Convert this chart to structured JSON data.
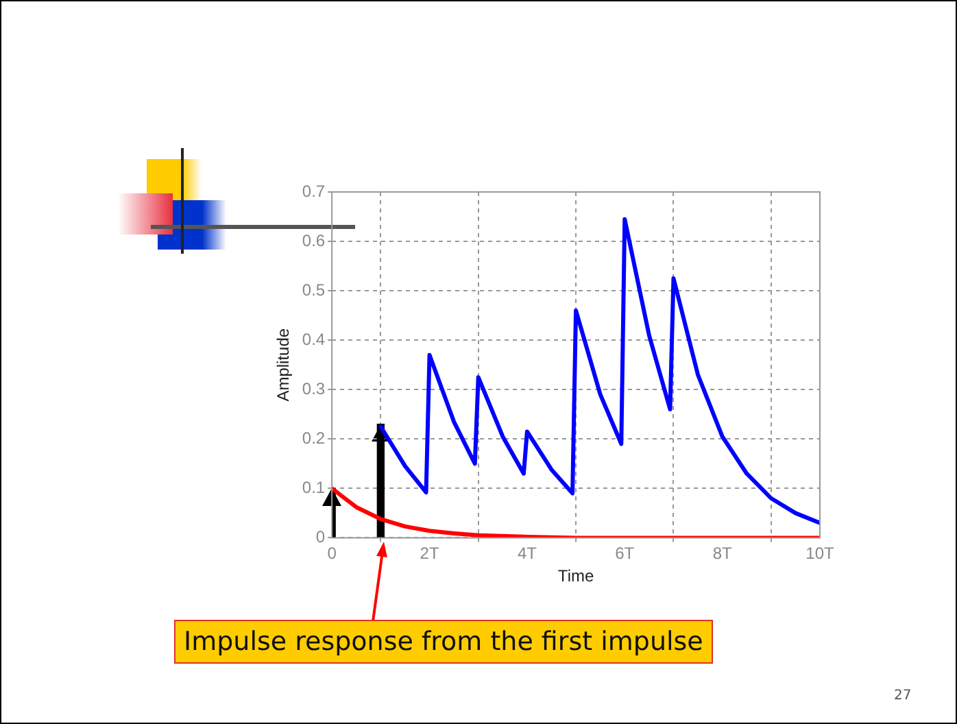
{
  "chart_data": {
    "type": "line",
    "xlabel": "Time",
    "ylabel": "Amplitude",
    "xlim": [
      0,
      10
    ],
    "xticks": [
      0,
      {
        "value": 2,
        "label": "2T"
      },
      {
        "value": 4,
        "label": "4T"
      },
      {
        "value": 6,
        "label": "6T"
      },
      {
        "value": 8,
        "label": "8T"
      },
      {
        "value": 10,
        "label": "10T"
      }
    ],
    "ylim": [
      0,
      0.7
    ],
    "yticks": [
      0,
      0.1,
      0.2,
      0.3,
      0.4,
      0.5,
      0.6,
      0.7
    ],
    "grid": true,
    "line_style": "solid",
    "marker": "none",
    "series": [
      {
        "color": "#ff0000",
        "x": [
          0,
          0.5,
          1,
          1.5,
          2,
          2.5,
          3,
          4,
          5,
          10
        ],
        "values": [
          0.1,
          0.062,
          0.038,
          0.023,
          0.014,
          0.009,
          0.005,
          0.002,
          0,
          0
        ]
      },
      {
        "color": "#0000ff",
        "x": [
          1,
          1.5,
          1.93,
          2,
          2.5,
          2.93,
          3,
          3.5,
          3.93,
          4,
          4.5,
          4.93,
          5,
          5.5,
          5.93,
          6,
          6.5,
          6.93,
          7,
          7.5,
          8,
          8.5,
          9,
          9.5,
          10
        ],
        "values": [
          0.225,
          0.145,
          0.092,
          0.37,
          0.235,
          0.15,
          0.325,
          0.205,
          0.13,
          0.215,
          0.138,
          0.09,
          0.46,
          0.29,
          0.19,
          0.645,
          0.41,
          0.26,
          0.525,
          0.33,
          0.205,
          0.13,
          0.08,
          0.05,
          0.03
        ]
      },
      {
        "type": "bar",
        "color": "#000000",
        "x": [
          0,
          1
        ],
        "values": [
          0.1,
          0.23
        ]
      }
    ],
    "annotations": [
      "Impulse response from the first impulse",
      "27"
    ]
  }
}
